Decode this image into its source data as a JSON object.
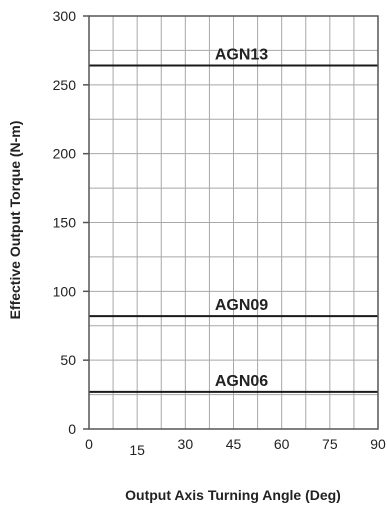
{
  "chart_data": {
    "type": "line",
    "title": "",
    "xlabel": "Output Axis Turning Angle (Deg)",
    "ylabel": "Effective Output Torque (N-m)",
    "xlim": [
      0,
      90
    ],
    "ylim": [
      0,
      300
    ],
    "x_ticks": [
      0,
      15,
      30,
      45,
      60,
      75,
      90
    ],
    "y_ticks": [
      0,
      50,
      100,
      150,
      200,
      250,
      300
    ],
    "x_minor_step": 7.5,
    "y_minor_step": 25,
    "grid": true,
    "series": [
      {
        "name": "AGN13",
        "x": [
          0,
          90
        ],
        "y": [
          264,
          264
        ]
      },
      {
        "name": "AGN09",
        "x": [
          0,
          90
        ],
        "y": [
          82,
          82
        ]
      },
      {
        "name": "AGN06",
        "x": [
          0,
          90
        ],
        "y": [
          27,
          27
        ]
      }
    ],
    "colors": {
      "axis": "#555555",
      "grid": "#a8a8a8",
      "series_line": "#1a1a1a",
      "text": "#222222"
    }
  }
}
